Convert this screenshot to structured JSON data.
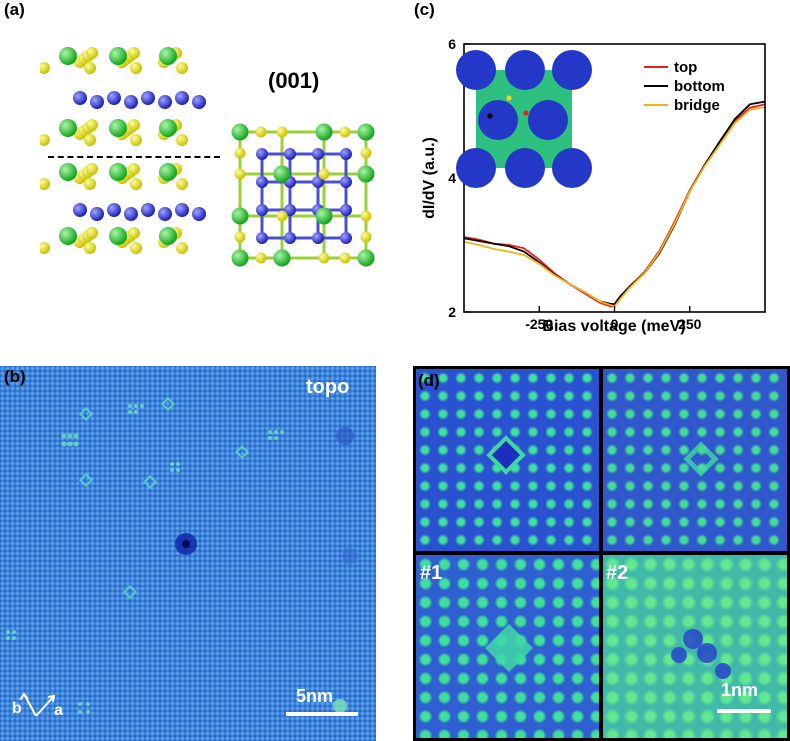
{
  "panels": {
    "a": {
      "label": "(a)",
      "plane_label": "(001)"
    },
    "b": {
      "label": "(b)",
      "mode_label": "topo",
      "scale_label": "5nm",
      "axis_b": "b",
      "axis_a": "a"
    },
    "c": {
      "label": "(c)"
    },
    "d": {
      "label": "(d)",
      "sub1": "#1",
      "sub2": "#2",
      "scale_label": "1nm"
    }
  },
  "chart_data": {
    "type": "line",
    "xlabel": "Bias voltage (meV)",
    "ylabel": "dI/dV (a.u.)",
    "xlim": [
      -500,
      500
    ],
    "ylim": [
      2,
      6
    ],
    "xticks": [
      -250,
      0,
      250
    ],
    "xtick_labels": [
      "-250",
      "0",
      "250"
    ],
    "yticks": [
      2,
      4,
      6
    ],
    "ytick_labels": [
      "2",
      "4",
      "6"
    ],
    "grid": false,
    "legend_position": "top-right",
    "x": [
      -500,
      -450,
      -400,
      -350,
      -300,
      -250,
      -200,
      -150,
      -100,
      -50,
      -10,
      0,
      20,
      50,
      100,
      150,
      200,
      250,
      300,
      350,
      400,
      450,
      500
    ],
    "series": [
      {
        "name": "top",
        "color": "#e8201a",
        "values": [
          3.12,
          3.08,
          3.02,
          3.0,
          2.95,
          2.78,
          2.58,
          2.42,
          2.28,
          2.14,
          2.08,
          2.1,
          2.2,
          2.38,
          2.6,
          2.92,
          3.35,
          3.82,
          4.2,
          4.52,
          4.85,
          5.05,
          5.1
        ]
      },
      {
        "name": "bottom",
        "color": "#000000",
        "values": [
          3.1,
          3.06,
          3.02,
          2.98,
          2.9,
          2.74,
          2.56,
          2.42,
          2.3,
          2.16,
          2.12,
          2.12,
          2.24,
          2.38,
          2.58,
          2.88,
          3.3,
          3.8,
          4.2,
          4.55,
          4.88,
          5.1,
          5.14
        ]
      },
      {
        "name": "bridge",
        "color": "#f2b31d",
        "values": [
          3.05,
          3.0,
          2.94,
          2.9,
          2.85,
          2.72,
          2.55,
          2.42,
          2.3,
          2.16,
          2.1,
          2.08,
          2.2,
          2.36,
          2.58,
          2.9,
          3.32,
          3.8,
          4.18,
          4.5,
          4.82,
          5.02,
          5.06
        ]
      }
    ]
  },
  "colors": {
    "stm_blue": "#3e7ad4",
    "stm_dark": "#1a2bb8",
    "stm_green": "#3fd48a",
    "atom_green": "#22c02a",
    "atom_yellow": "#e8e417",
    "atom_blue": "#3b3fd6"
  }
}
